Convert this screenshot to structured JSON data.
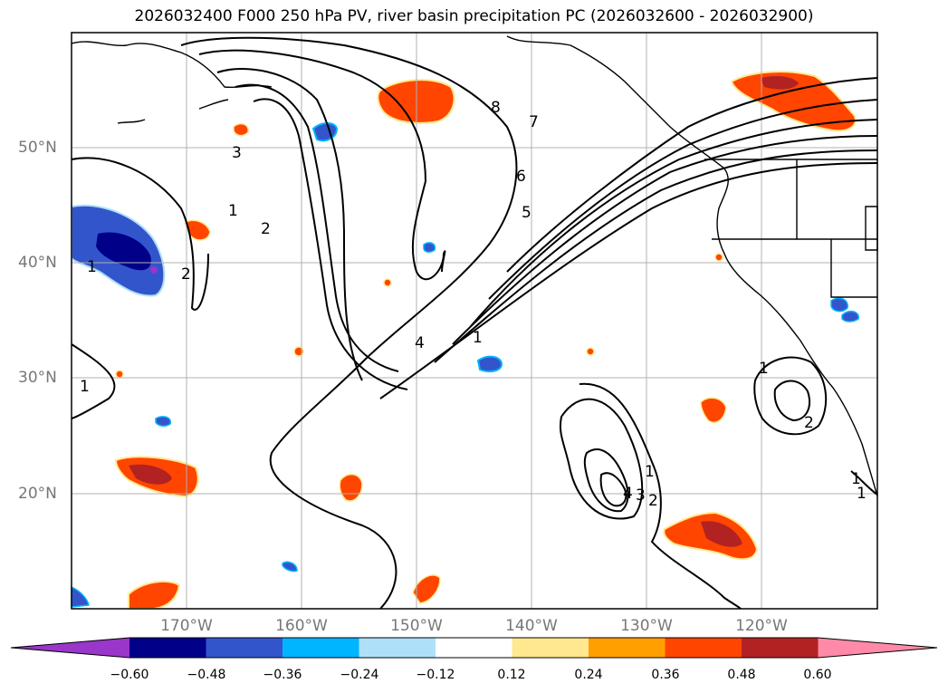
{
  "title": "2026032400 F000 250 hPa PV, river basin precipitation PC (2026032600 - 2026032900)",
  "latitude_labels": [
    "50°N",
    "40°N",
    "30°N",
    "20°N"
  ],
  "longitude_labels": [
    "170°W",
    "160°W",
    "150°W",
    "140°W",
    "130°W",
    "120°W"
  ],
  "pv_contour_labels": [
    "1",
    "2",
    "3",
    "4",
    "5",
    "6",
    "7",
    "8",
    "1",
    "2",
    "1",
    "1",
    "2",
    "3",
    "4",
    "1",
    "2",
    "1",
    "1",
    "1"
  ],
  "colorbar": {
    "ticks": [
      "−0.60",
      "−0.48",
      "−0.36",
      "−0.24",
      "−0.12",
      "0.12",
      "0.24",
      "0.36",
      "0.48",
      "0.60"
    ],
    "colors": [
      "#9a36c9",
      "#000088",
      "#3355cc",
      "#00b5ff",
      "#aee0fa",
      "#ffffff",
      "#ffe890",
      "#ffa000",
      "#ff4500",
      "#b22222",
      "#ff8aa8"
    ]
  },
  "colors": {
    "contour": "#000000",
    "grid": "#b0b0b0",
    "coast": "#000000"
  }
}
